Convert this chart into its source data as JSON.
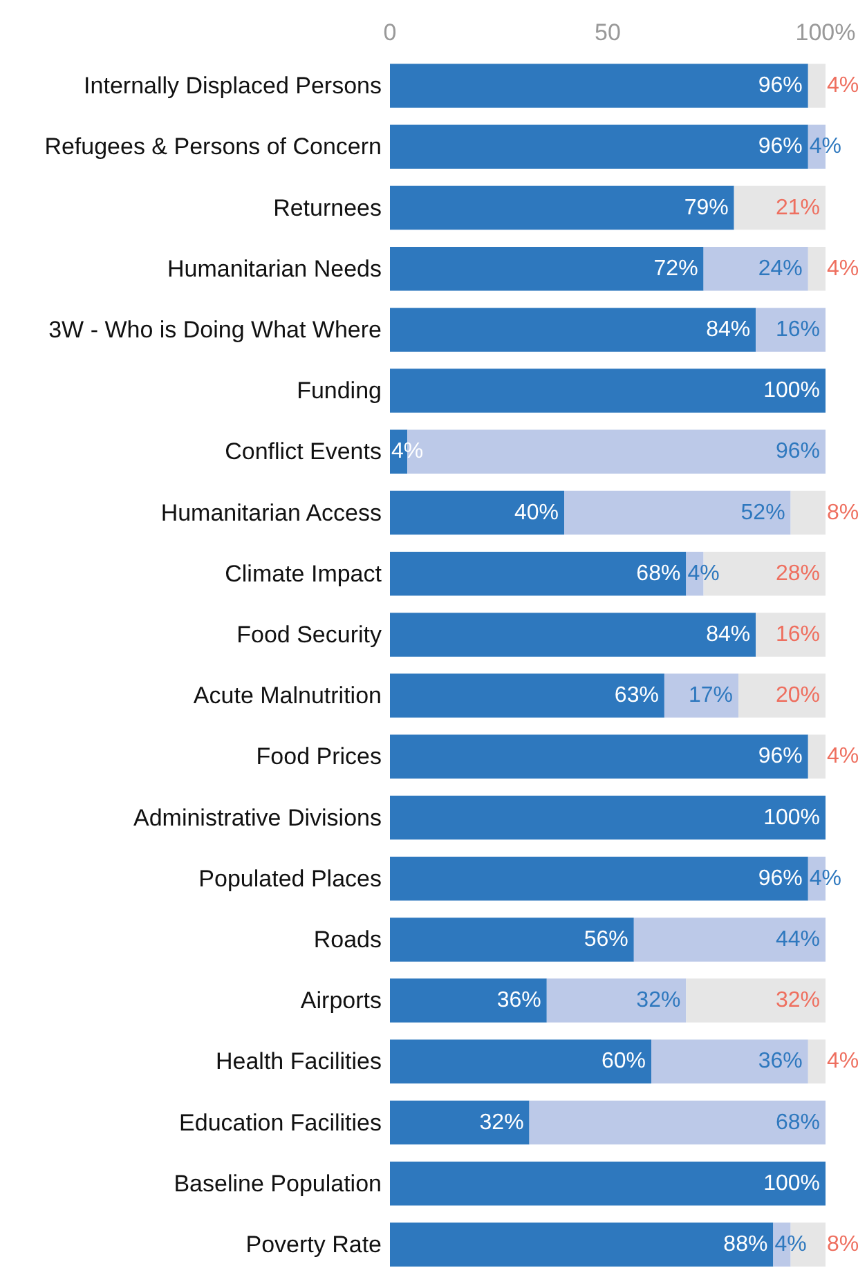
{
  "chart_data": {
    "type": "bar",
    "orientation": "horizontal",
    "stacked": true,
    "categories": [
      "Internally Displaced Persons",
      "Refugees & Persons of Concern",
      "Returnees",
      "Humanitarian Needs",
      "3W - Who is Doing What Where",
      "Funding",
      "Conflict Events",
      "Humanitarian Access",
      "Climate Impact",
      "Food Security",
      "Acute Malnutrition",
      "Food Prices",
      "Administrative Divisions",
      "Populated Places",
      "Roads",
      "Airports",
      "Health Facilities",
      "Education Facilities",
      "Baseline Population",
      "Poverty Rate"
    ],
    "series": [
      {
        "color": "#2e78be",
        "values": [
          96,
          96,
          79,
          72,
          84,
          100,
          4,
          40,
          68,
          84,
          63,
          96,
          100,
          96,
          56,
          36,
          60,
          32,
          100,
          88
        ],
        "value_labels": [
          "96%",
          "96%",
          "79%",
          "72%",
          "84%",
          "100%",
          "4%",
          "40%",
          "68%",
          "84%",
          "63%",
          "96%",
          "100%",
          "96%",
          "56%",
          "36%",
          "60%",
          "32%",
          "100%",
          "88%"
        ]
      },
      {
        "color": "#bcc9e8",
        "values": [
          null,
          4,
          null,
          24,
          16,
          null,
          96,
          52,
          4,
          null,
          17,
          null,
          null,
          4,
          44,
          32,
          36,
          68,
          null,
          4
        ],
        "value_labels": [
          null,
          "4%",
          null,
          "24%",
          "16%",
          null,
          "96%",
          "52%",
          "4%",
          null,
          "17%",
          null,
          null,
          "4%",
          "44%",
          "32%",
          "36%",
          "68%",
          null,
          "4%"
        ]
      },
      {
        "color": "#e6e6e6",
        "values": [
          4,
          null,
          21,
          4,
          null,
          null,
          null,
          8,
          28,
          16,
          20,
          4,
          null,
          null,
          null,
          32,
          4,
          null,
          null,
          8
        ],
        "value_labels": [
          "4%",
          null,
          "21%",
          "4%",
          null,
          null,
          null,
          "8%",
          "28%",
          "16%",
          "20%",
          "4%",
          null,
          null,
          null,
          "32%",
          "4%",
          null,
          null,
          "8%"
        ]
      }
    ],
    "xlim": [
      0,
      100
    ],
    "xticks": [
      0,
      50,
      {
        "value": 100,
        "label": "100%"
      }
    ],
    "grid": false
  }
}
